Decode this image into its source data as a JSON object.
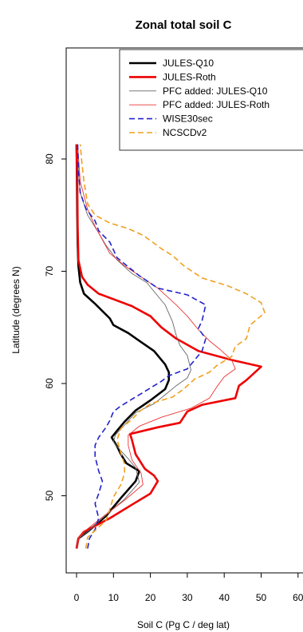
{
  "chart_data": {
    "type": "line",
    "title": "Zonal total soil C",
    "xlabel": "Soil C (Pg C / deg lat)",
    "ylabel": "Latitude (degrees N)",
    "xlim": [
      0,
      60
    ],
    "ylim": [
      45,
      82
    ],
    "x_ticks": [
      0,
      10,
      20,
      30,
      40,
      50,
      60
    ],
    "y_ticks": [
      50,
      60,
      70,
      80
    ],
    "legend_position": "top-right",
    "grid": false,
    "series": [
      {
        "name": "JULES-Q10",
        "color": "#000000",
        "dash": "solid",
        "weight": "thick",
        "points": [
          [
            0,
            45.3
          ],
          [
            0.5,
            46.2
          ],
          [
            3,
            46.8
          ],
          [
            8,
            48.2
          ],
          [
            12,
            49.8
          ],
          [
            16,
            51.3
          ],
          [
            17,
            52.2
          ],
          [
            13.5,
            52.9
          ],
          [
            12,
            53.7
          ],
          [
            11,
            54.4
          ],
          [
            9.5,
            55.2
          ],
          [
            11,
            55.8
          ],
          [
            13,
            56.6
          ],
          [
            16,
            57.6
          ],
          [
            20,
            58.5
          ],
          [
            24,
            59.5
          ],
          [
            25,
            60.3
          ],
          [
            25,
            61.0
          ],
          [
            24,
            61.7
          ],
          [
            21,
            62.9
          ],
          [
            17,
            63.8
          ],
          [
            14,
            64.5
          ],
          [
            10,
            65.2
          ],
          [
            9,
            65.8
          ],
          [
            5,
            67.1
          ],
          [
            2,
            68.0
          ],
          [
            1,
            69.0
          ],
          [
            0.5,
            70.5
          ],
          [
            0.3,
            72.5
          ],
          [
            0.2,
            75
          ],
          [
            0.1,
            78
          ],
          [
            0,
            81.3
          ]
        ]
      },
      {
        "name": "JULES-Roth",
        "color": "#ee0000",
        "dash": "solid",
        "weight": "thick",
        "points": [
          [
            0,
            45.3
          ],
          [
            0.5,
            46.2
          ],
          [
            2,
            46.8
          ],
          [
            9,
            48.0
          ],
          [
            15,
            49.2
          ],
          [
            20,
            50.2
          ],
          [
            22,
            51.3
          ],
          [
            21,
            51.8
          ],
          [
            18.5,
            52.4
          ],
          [
            16,
            53.7
          ],
          [
            15,
            55.0
          ],
          [
            14.5,
            55.5
          ],
          [
            22,
            56.1
          ],
          [
            28,
            56.5
          ],
          [
            30,
            57.5
          ],
          [
            34,
            58.1
          ],
          [
            43,
            58.7
          ],
          [
            44,
            59.8
          ],
          [
            46,
            60.3
          ],
          [
            50,
            61.5
          ],
          [
            42,
            62.1
          ],
          [
            33,
            62.9
          ],
          [
            27,
            64.0
          ],
          [
            23,
            65.0
          ],
          [
            20,
            66.0
          ],
          [
            15,
            66.9
          ],
          [
            6,
            68.0
          ],
          [
            3,
            68.8
          ],
          [
            1.5,
            69.5
          ],
          [
            0.5,
            71
          ],
          [
            0.3,
            74
          ],
          [
            0.2,
            78
          ],
          [
            0,
            81.3
          ]
        ]
      },
      {
        "name": "PFC added: JULES-Q10",
        "color": "#666666",
        "dash": "solid",
        "weight": "thin",
        "points": [
          [
            0,
            45.3
          ],
          [
            0.5,
            46.2
          ],
          [
            3,
            46.8
          ],
          [
            7,
            48.0
          ],
          [
            13,
            49.7
          ],
          [
            17,
            51.2
          ],
          [
            16,
            52.5
          ],
          [
            14,
            53.3
          ],
          [
            12,
            54.0
          ],
          [
            10,
            54.8
          ],
          [
            10.5,
            55.4
          ],
          [
            13,
            56.3
          ],
          [
            16,
            57.4
          ],
          [
            21,
            58.2
          ],
          [
            24,
            59.0
          ],
          [
            27,
            59.8
          ],
          [
            30,
            60.5
          ],
          [
            31,
            61.2
          ],
          [
            30,
            62.5
          ],
          [
            28,
            63.4
          ],
          [
            27,
            64.3
          ],
          [
            26,
            65.5
          ],
          [
            24,
            67.0
          ],
          [
            19,
            69.0
          ],
          [
            15,
            69.8
          ],
          [
            11,
            71.0
          ],
          [
            8,
            72.3
          ],
          [
            6,
            73.4
          ],
          [
            3,
            75.0
          ],
          [
            1,
            77
          ],
          [
            0.5,
            79
          ],
          [
            0.2,
            81.3
          ]
        ]
      },
      {
        "name": "PFC added: JULES-Roth",
        "color": "#ee3333",
        "dash": "solid",
        "weight": "thin",
        "points": [
          [
            0,
            45.3
          ],
          [
            0.5,
            46.2
          ],
          [
            2,
            46.8
          ],
          [
            7,
            48.1
          ],
          [
            13,
            49.6
          ],
          [
            18,
            51.0
          ],
          [
            17.5,
            52.0
          ],
          [
            15,
            53.2
          ],
          [
            14,
            54.5
          ],
          [
            14,
            55.4
          ],
          [
            17,
            56.2
          ],
          [
            23,
            57.0
          ],
          [
            31,
            57.8
          ],
          [
            36,
            58.7
          ],
          [
            38,
            59.7
          ],
          [
            40,
            60.6
          ],
          [
            43,
            61.3
          ],
          [
            42,
            62.1
          ],
          [
            39,
            63.0
          ],
          [
            36,
            63.8
          ],
          [
            33,
            64.8
          ],
          [
            30,
            66.0
          ],
          [
            27,
            67.0
          ],
          [
            22,
            68.5
          ],
          [
            17,
            69.6
          ],
          [
            13,
            70.5
          ],
          [
            9,
            71.6
          ],
          [
            7,
            72.8
          ],
          [
            5,
            74.0
          ],
          [
            3,
            75.5
          ],
          [
            1,
            78
          ],
          [
            0.3,
            81.3
          ]
        ]
      },
      {
        "name": "WISE30sec",
        "color": "#2222cc",
        "dash": "dashed",
        "weight": "medium",
        "points": [
          [
            3,
            45.3
          ],
          [
            3.5,
            46.2
          ],
          [
            5,
            47.0
          ],
          [
            6,
            48.0
          ],
          [
            5,
            49.3
          ],
          [
            6,
            50.2
          ],
          [
            7,
            51.3
          ],
          [
            6,
            52.2
          ],
          [
            5,
            53.5
          ],
          [
            5,
            54.5
          ],
          [
            6,
            55.2
          ],
          [
            8,
            56.1
          ],
          [
            9,
            56.7
          ],
          [
            10,
            57.5
          ],
          [
            12,
            58.0
          ],
          [
            15,
            58.6
          ],
          [
            19,
            59.4
          ],
          [
            23,
            60.2
          ],
          [
            25,
            60.7
          ],
          [
            30,
            61.3
          ],
          [
            32,
            62.1
          ],
          [
            34,
            62.9
          ],
          [
            35,
            64.0
          ],
          [
            33,
            64.9
          ],
          [
            34,
            65.6
          ],
          [
            35,
            67.0
          ],
          [
            30,
            67.9
          ],
          [
            22,
            68.5
          ],
          [
            17,
            69.6
          ],
          [
            14,
            70.4
          ],
          [
            11,
            71.2
          ],
          [
            9,
            72.6
          ],
          [
            6,
            73.6
          ],
          [
            5,
            74.5
          ],
          [
            2.5,
            75.6
          ],
          [
            1,
            77
          ],
          [
            0.5,
            79
          ],
          [
            0.3,
            81.3
          ]
        ]
      },
      {
        "name": "NCSCDv2",
        "color": "#f0a020",
        "dash": "dashed",
        "weight": "medium",
        "points": [
          [
            2.5,
            45.3
          ],
          [
            3,
            46.3
          ],
          [
            5,
            46.9
          ],
          [
            8,
            47.8
          ],
          [
            9,
            48.8
          ],
          [
            10,
            49.9
          ],
          [
            12,
            51.0
          ],
          [
            13,
            52.0
          ],
          [
            13,
            52.8
          ],
          [
            12,
            53.8
          ],
          [
            11,
            55.0
          ],
          [
            12,
            56.0
          ],
          [
            15,
            56.8
          ],
          [
            17,
            57.5
          ],
          [
            20,
            58.2
          ],
          [
            26,
            58.8
          ],
          [
            29,
            59.5
          ],
          [
            32,
            60.4
          ],
          [
            36,
            61.0
          ],
          [
            38,
            61.6
          ],
          [
            42,
            62.4
          ],
          [
            43,
            63.3
          ],
          [
            46,
            64.0
          ],
          [
            47,
            65.2
          ],
          [
            51,
            66.3
          ],
          [
            50,
            67.2
          ],
          [
            46,
            68.0
          ],
          [
            41,
            68.7
          ],
          [
            34,
            69.4
          ],
          [
            29,
            70.5
          ],
          [
            26,
            71.4
          ],
          [
            23,
            72.0
          ],
          [
            21,
            72.5
          ],
          [
            18,
            73.2
          ],
          [
            14,
            73.8
          ],
          [
            9,
            74.3
          ],
          [
            5,
            75.0
          ],
          [
            3,
            76.0
          ],
          [
            2,
            78.0
          ],
          [
            1.5,
            79.5
          ],
          [
            1,
            81.3
          ]
        ]
      }
    ]
  }
}
